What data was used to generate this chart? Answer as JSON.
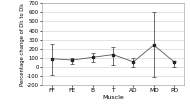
{
  "muscles": [
    "FF",
    "FE",
    "B",
    "T",
    "AD",
    "MD",
    "PD"
  ],
  "means": [
    90,
    75,
    105,
    135,
    55,
    240,
    55
  ],
  "ci_low": [
    -90,
    30,
    50,
    20,
    0,
    -110,
    0
  ],
  "ci_high": [
    250,
    95,
    150,
    220,
    100,
    600,
    60
  ],
  "ylabel": "Percentage change of DI₁ to DI₆",
  "xlabel": "Muscle",
  "ylim": [
    -200,
    700
  ],
  "yticks": [
    -200,
    -100,
    0,
    100,
    200,
    300,
    400,
    500,
    600,
    700
  ],
  "line_color": "#555555",
  "marker_color": "#222222",
  "background_color": "#ffffff",
  "grid_color": "#cccccc",
  "ylabel_fontsize": 3.8,
  "xlabel_fontsize": 4.5,
  "tick_fontsize": 3.8,
  "xtick_fontsize": 4.2
}
